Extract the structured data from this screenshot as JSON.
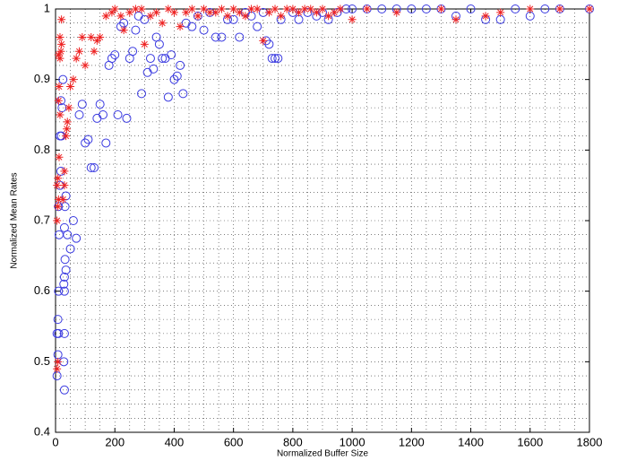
{
  "chart_data": {
    "type": "scatter",
    "xlabel": "Normalized Buffer Size",
    "ylabel": "Normalized Mean Rates",
    "xlim": [
      0,
      1800
    ],
    "ylim": [
      0.4,
      1
    ],
    "xticks": [
      0,
      200,
      400,
      600,
      800,
      1000,
      1200,
      1400,
      1600,
      1800
    ],
    "yticks": [
      0.4,
      0.5,
      0.6,
      0.7,
      0.8,
      0.9,
      1
    ],
    "minor_xticks": [
      0,
      50,
      100,
      150,
      200,
      250,
      300,
      350,
      400,
      450,
      500,
      550,
      600,
      650,
      700,
      750,
      800,
      850,
      900,
      950,
      1000,
      1050,
      1100,
      1150,
      1200,
      1250,
      1300,
      1350,
      1400,
      1450,
      1500,
      1550,
      1600,
      1650,
      1700,
      1750,
      1800
    ],
    "minor_yticks": [
      0.4,
      0.42,
      0.44,
      0.46,
      0.48,
      0.5,
      0.52,
      0.54,
      0.56,
      0.58,
      0.6,
      0.62,
      0.64,
      0.66,
      0.68,
      0.7,
      0.72,
      0.74,
      0.76,
      0.78,
      0.8,
      0.82,
      0.84,
      0.86,
      0.88,
      0.9,
      0.92,
      0.94,
      0.96,
      0.98,
      1
    ],
    "grid": "dotted",
    "series": [
      {
        "marker": "circle",
        "color": "#3a3ae0",
        "x": [
          5,
          8,
          10,
          5,
          8,
          10,
          12,
          10,
          15,
          18,
          15,
          20,
          22,
          18,
          25,
          30,
          28,
          30,
          30,
          28,
          30,
          32,
          35,
          30,
          32,
          35,
          40,
          50,
          60,
          70,
          80,
          90,
          100,
          110,
          120,
          130,
          140,
          150,
          160,
          170,
          180,
          190,
          200,
          210,
          220,
          230,
          240,
          250,
          260,
          270,
          280,
          290,
          300,
          310,
          320,
          330,
          340,
          350,
          360,
          370,
          380,
          390,
          400,
          410,
          420,
          430,
          440,
          460,
          480,
          500,
          520,
          540,
          560,
          580,
          600,
          620,
          640,
          660,
          680,
          700,
          710,
          720,
          730,
          740,
          750,
          760,
          800,
          820,
          850,
          880,
          900,
          920,
          950,
          980,
          1000,
          1050,
          1100,
          1150,
          1200,
          1250,
          1300,
          1350,
          1400,
          1450,
          1500,
          1550,
          1600,
          1650,
          1700,
          1800
        ],
        "values": [
          0.48,
          0.51,
          0.54,
          0.54,
          0.56,
          0.6,
          0.68,
          0.72,
          0.75,
          0.77,
          0.82,
          0.82,
          0.86,
          0.87,
          0.9,
          0.46,
          0.5,
          0.54,
          0.6,
          0.61,
          0.62,
          0.645,
          0.63,
          0.69,
          0.72,
          0.735,
          0.68,
          0.66,
          0.7,
          0.675,
          0.85,
          0.865,
          0.81,
          0.815,
          0.775,
          0.775,
          0.845,
          0.865,
          0.85,
          0.81,
          0.92,
          0.93,
          0.935,
          0.85,
          0.975,
          0.98,
          0.845,
          0.93,
          0.94,
          0.97,
          0.99,
          0.88,
          0.985,
          0.91,
          0.93,
          0.915,
          0.96,
          0.95,
          0.93,
          0.93,
          0.875,
          0.935,
          0.9,
          0.905,
          0.92,
          0.88,
          0.98,
          0.975,
          0.99,
          0.97,
          0.995,
          0.96,
          0.96,
          0.985,
          0.985,
          0.96,
          0.995,
          0.99,
          0.975,
          0.995,
          0.955,
          0.95,
          0.93,
          0.93,
          0.93,
          0.985,
          0.995,
          0.985,
          0.995,
          0.99,
          0.995,
          0.985,
          0.995,
          1,
          1,
          1,
          1,
          1,
          1,
          1,
          1,
          0.99,
          1,
          0.985,
          0.985,
          1,
          0.99,
          1,
          1,
          1
        ]
      },
      {
        "marker": "star",
        "color": "#ee2222",
        "x": [
          5,
          8,
          5,
          8,
          10,
          5,
          8,
          12,
          15,
          10,
          12,
          15,
          10,
          18,
          20,
          15,
          20,
          25,
          30,
          30,
          35,
          38,
          40,
          45,
          50,
          60,
          70,
          80,
          90,
          100,
          120,
          130,
          140,
          150,
          170,
          190,
          200,
          220,
          230,
          250,
          270,
          290,
          300,
          320,
          340,
          360,
          380,
          400,
          420,
          440,
          460,
          480,
          500,
          520,
          540,
          560,
          580,
          600,
          620,
          640,
          660,
          680,
          700,
          720,
          740,
          760,
          780,
          800,
          820,
          840,
          860,
          880,
          900,
          920,
          940,
          960,
          1000,
          1050,
          1150,
          1300,
          1350,
          1450,
          1500,
          1600,
          1700,
          1800
        ],
        "values": [
          0.49,
          0.5,
          0.7,
          0.72,
          0.73,
          0.75,
          0.76,
          0.79,
          0.85,
          0.87,
          0.89,
          0.93,
          0.935,
          0.94,
          0.95,
          0.96,
          0.985,
          0.73,
          0.75,
          0.77,
          0.82,
          0.83,
          0.84,
          0.86,
          0.89,
          0.9,
          0.93,
          0.94,
          0.96,
          0.92,
          0.96,
          0.94,
          0.955,
          0.96,
          0.99,
          0.995,
          1,
          0.99,
          0.97,
          0.995,
          1,
          1,
          0.95,
          0.99,
          0.995,
          0.98,
          1,
          0.995,
          0.975,
          0.995,
          1,
          0.99,
          1,
          0.995,
          0.995,
          1,
          0.99,
          1,
          0.995,
          0.99,
          1,
          1,
          0.955,
          0.995,
          1,
          0.99,
          1,
          1,
          0.995,
          1,
          1,
          0.995,
          1,
          0.99,
          0.995,
          1,
          0.985,
          1,
          0.995,
          1,
          0.985,
          0.99,
          0.995,
          1,
          1,
          1
        ]
      }
    ]
  }
}
